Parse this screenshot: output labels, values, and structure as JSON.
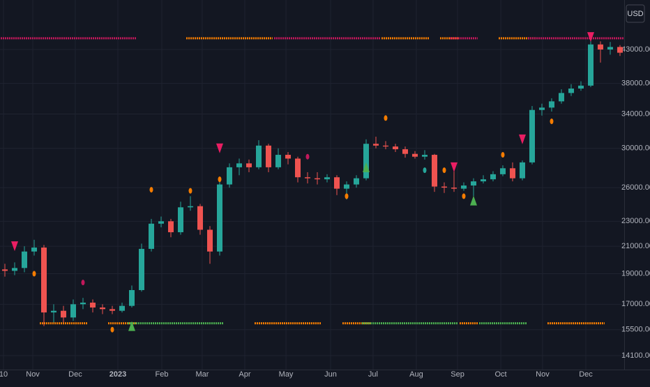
{
  "chart_data": {
    "type": "candlestick",
    "currency": "USD",
    "log_scale": true,
    "grid": true,
    "colors": {
      "up": "#26a69a",
      "down": "#ef5350",
      "background": "#131722",
      "grid": "#1f2330",
      "text": "#b2b5be"
    },
    "xlim": [
      -0.5,
      63.43
    ],
    "ylim": [
      13400,
      51500
    ],
    "xticks": [
      {
        "value": -0.14,
        "label": "10"
      },
      {
        "value": 2.86,
        "label": "Nov"
      },
      {
        "value": 7.21,
        "label": "Dec"
      },
      {
        "value": 11.57,
        "label": "2023"
      },
      {
        "value": 16.07,
        "label": "Feb"
      },
      {
        "value": 20.21,
        "label": "Mar"
      },
      {
        "value": 24.57,
        "label": "Apr"
      },
      {
        "value": 28.79,
        "label": "May"
      },
      {
        "value": 33.36,
        "label": "Jun"
      },
      {
        "value": 37.71,
        "label": "Jul"
      },
      {
        "value": 42.14,
        "label": "Aug"
      },
      {
        "value": 46.36,
        "label": "Sep"
      },
      {
        "value": 50.79,
        "label": "Oct"
      },
      {
        "value": 55.07,
        "label": "Nov"
      },
      {
        "value": 59.5,
        "label": "Dec"
      }
    ],
    "yticks": [
      {
        "value": 14100,
        "label": "14100.00"
      },
      {
        "value": 15500,
        "label": "15500.00"
      },
      {
        "value": 17000,
        "label": "17000.00"
      },
      {
        "value": 19000,
        "label": "19000.00"
      },
      {
        "value": 21000,
        "label": "21000.00"
      },
      {
        "value": 23000,
        "label": "23000.00"
      },
      {
        "value": 26000,
        "label": "26000.00"
      },
      {
        "value": 30000,
        "label": "30000.00"
      },
      {
        "value": 34000,
        "label": "34000.00"
      },
      {
        "value": 38000,
        "label": "38000.00"
      },
      {
        "value": 43000,
        "label": "43000.00"
      }
    ],
    "open": [
      19300,
      19200,
      19400,
      20600,
      20900,
      16500,
      16600,
      16200,
      17000,
      17100,
      16800,
      16700,
      16600,
      16900,
      17900,
      20800,
      22800,
      23000,
      22100,
      24200,
      24300,
      22300,
      20600,
      26300,
      28000,
      28400,
      28000,
      30300,
      28000,
      29300,
      28900,
      27000,
      26900,
      26800,
      27000,
      25900,
      26300,
      26900,
      30500,
      30300,
      30200,
      29900,
      29400,
      29100,
      29300,
      26100,
      26000,
      25900,
      26200,
      26600,
      26800,
      27300,
      27900,
      26900,
      28500,
      34500,
      34800,
      35600,
      36700,
      37300,
      37700,
      43800,
      43000,
      43400
    ],
    "high": [
      19700,
      19800,
      21000,
      21500,
      21100,
      17000,
      16900,
      17300,
      17400,
      17300,
      17000,
      16900,
      17100,
      18200,
      21200,
      23200,
      23400,
      23200,
      24700,
      25200,
      24500,
      22600,
      26600,
      28400,
      28900,
      28800,
      30900,
      30500,
      30000,
      29600,
      29100,
      27500,
      27500,
      27300,
      27200,
      26600,
      27200,
      31000,
      31300,
      30800,
      30500,
      30200,
      29700,
      29800,
      29400,
      26500,
      27700,
      26500,
      26900,
      27200,
      27600,
      28200,
      28500,
      28700,
      35000,
      35300,
      36000,
      37200,
      37900,
      38300,
      44500,
      44300,
      44200,
      43700
    ],
    "low": [
      18800,
      18900,
      19100,
      20300,
      15700,
      15900,
      15800,
      16000,
      16700,
      16500,
      16400,
      16400,
      16500,
      16800,
      17800,
      20600,
      22500,
      21700,
      21900,
      23900,
      21900,
      19700,
      20300,
      26000,
      27200,
      27500,
      27800,
      27500,
      27800,
      28300,
      26500,
      26400,
      26300,
      26500,
      25300,
      24900,
      26000,
      26700,
      30000,
      29900,
      29600,
      29000,
      28900,
      28800,
      25600,
      25500,
      25600,
      25700,
      25200,
      26400,
      26600,
      27100,
      26600,
      26700,
      28300,
      33800,
      34300,
      35300,
      36300,
      37000,
      37500,
      41000,
      42200,
      42000
    ],
    "close": [
      19200,
      19400,
      20600,
      20900,
      16500,
      16600,
      16200,
      17000,
      17100,
      16800,
      16700,
      16600,
      16900,
      17900,
      20800,
      22800,
      23000,
      22100,
      24200,
      24300,
      22300,
      20600,
      26300,
      28000,
      28400,
      28000,
      30300,
      28000,
      29300,
      28900,
      27000,
      26900,
      26800,
      27000,
      25900,
      26300,
      26900,
      30500,
      30300,
      30200,
      29900,
      29400,
      29100,
      29300,
      26100,
      26000,
      25900,
      26200,
      26600,
      26800,
      27300,
      27900,
      26900,
      28500,
      34500,
      34800,
      35600,
      36700,
      37300,
      37700,
      43800,
      43000,
      43400,
      42500
    ],
    "bands": [
      {
        "start": 0,
        "end": 13,
        "y": 44800,
        "color": "#c2185b"
      },
      {
        "start": 19,
        "end": 27,
        "y": 44800,
        "color": "#f57c00"
      },
      {
        "start": 28,
        "end": 38,
        "y": 44800,
        "color": "#c2185b"
      },
      {
        "start": 39,
        "end": 43,
        "y": 44800,
        "color": "#f57c00"
      },
      {
        "start": 45,
        "end": 46,
        "y": 44800,
        "color": "#f57c00"
      },
      {
        "start": 46,
        "end": 48,
        "y": 44800,
        "color": "#c2185b"
      },
      {
        "start": 51,
        "end": 54,
        "y": 44800,
        "color": "#f57c00"
      },
      {
        "start": 54,
        "end": 63,
        "y": 44800,
        "color": "#c2185b"
      },
      {
        "start": 4,
        "end": 8,
        "y": 15860,
        "color": "#f57c00"
      },
      {
        "start": 11,
        "end": 13,
        "y": 15860,
        "color": "#f57c00"
      },
      {
        "start": 13,
        "end": 22,
        "y": 15860,
        "color": "#4caf50"
      },
      {
        "start": 26,
        "end": 32,
        "y": 15860,
        "color": "#f57c00"
      },
      {
        "start": 35,
        "end": 37,
        "y": 15860,
        "color": "#f57c00"
      },
      {
        "start": 37,
        "end": 46,
        "y": 15860,
        "color": "#4caf50"
      },
      {
        "start": 47,
        "end": 48,
        "y": 15860,
        "color": "#f57c00"
      },
      {
        "start": 49,
        "end": 53,
        "y": 15860,
        "color": "#4caf50"
      },
      {
        "start": 56,
        "end": 61,
        "y": 15860,
        "color": "#f57c00"
      }
    ],
    "down_triangles": {
      "color": "#e91e63",
      "points": [
        {
          "x": 1,
          "y": 21000
        },
        {
          "x": 22,
          "y": 30000
        },
        {
          "x": 46,
          "y": 28000
        },
        {
          "x": 53,
          "y": 31000
        },
        {
          "x": 60,
          "y": 45000
        }
      ]
    },
    "up_triangles": {
      "color": "#4caf50",
      "points": [
        {
          "x": 13,
          "y": 15700
        },
        {
          "x": 37,
          "y": 28000
        },
        {
          "x": 48,
          "y": 24800
        }
      ]
    },
    "dots": [
      {
        "x": 3,
        "y": 19000,
        "color": "#f57c00"
      },
      {
        "x": 11,
        "y": 15500,
        "color": "#f57c00"
      },
      {
        "x": 15,
        "y": 25800,
        "color": "#f57c00"
      },
      {
        "x": 19,
        "y": 25700,
        "color": "#f57c00"
      },
      {
        "x": 22,
        "y": 26800,
        "color": "#f57c00"
      },
      {
        "x": 35,
        "y": 25200,
        "color": "#f57c00"
      },
      {
        "x": 39,
        "y": 33500,
        "color": "#f57c00"
      },
      {
        "x": 45,
        "y": 27700,
        "color": "#f57c00"
      },
      {
        "x": 47,
        "y": 25200,
        "color": "#f57c00"
      },
      {
        "x": 51,
        "y": 29300,
        "color": "#f57c00"
      },
      {
        "x": 56,
        "y": 33100,
        "color": "#f57c00"
      },
      {
        "x": 8,
        "y": 18400,
        "color": "#c2185b"
      },
      {
        "x": 31,
        "y": 29100,
        "color": "#c2185b"
      },
      {
        "x": 43,
        "y": 27700,
        "color": "#26a69a"
      }
    ]
  }
}
